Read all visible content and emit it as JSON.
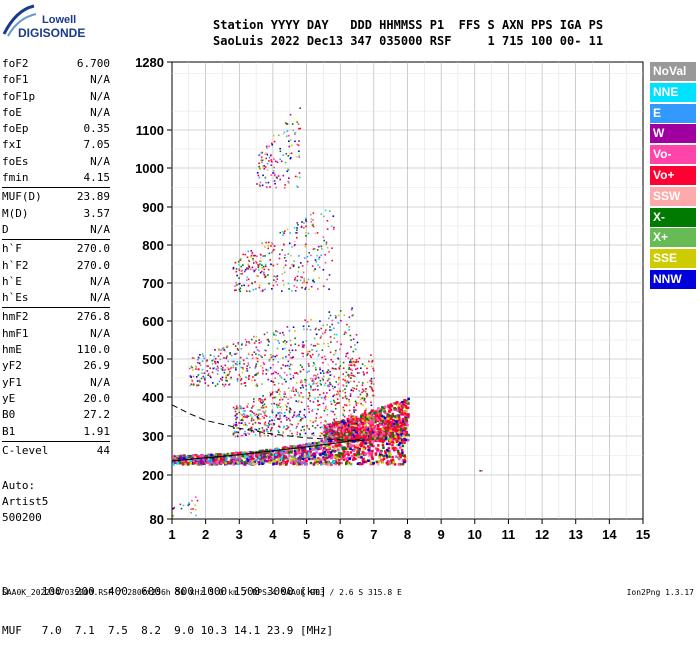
{
  "logo": {
    "line1": "Lowell",
    "line2": "DIGISONDE"
  },
  "header": {
    "line1": "Station YYYY DAY   DDD HHMMSS P1  FFS S AXN PPS IGA PS",
    "line2": "SaoLuis 2022 Dec13 347 035000 RSF     1 715 100 00- 11"
  },
  "params": {
    "group1": [
      {
        "name": "foF2",
        "value": "6.700"
      },
      {
        "name": "foF1",
        "value": "N/A"
      },
      {
        "name": "foF1p",
        "value": "N/A"
      },
      {
        "name": "foE",
        "value": "N/A"
      },
      {
        "name": "foEp",
        "value": "0.35"
      },
      {
        "name": "fxI",
        "value": "7.05"
      },
      {
        "name": "foEs",
        "value": "N/A"
      },
      {
        "name": "fmin",
        "value": "4.15"
      }
    ],
    "group2": [
      {
        "name": "MUF(D)",
        "value": "23.89"
      },
      {
        "name": "M(D)",
        "value": "3.57"
      },
      {
        "name": "D",
        "value": "N/A"
      }
    ],
    "group3": [
      {
        "name": "h`F",
        "value": "270.0"
      },
      {
        "name": "h`F2",
        "value": "270.0"
      },
      {
        "name": "h`E",
        "value": "N/A"
      },
      {
        "name": "h`Es",
        "value": "N/A"
      }
    ],
    "group4": [
      {
        "name": "hmF2",
        "value": "276.8"
      },
      {
        "name": "hmF1",
        "value": "N/A"
      },
      {
        "name": "hmE",
        "value": "110.0"
      },
      {
        "name": "yF2",
        "value": "26.9"
      },
      {
        "name": "yF1",
        "value": "N/A"
      },
      {
        "name": "yE",
        "value": "20.0"
      },
      {
        "name": "B0",
        "value": "27.2"
      },
      {
        "name": "B1",
        "value": "1.91"
      }
    ],
    "group5": [
      {
        "name": "C-level",
        "value": "44"
      }
    ]
  },
  "auto": {
    "line1": "Auto:",
    "line2": "Artist5",
    "line3": "500200"
  },
  "legend": [
    {
      "label": "NoVal",
      "color": "#999999"
    },
    {
      "label": "NNE",
      "color": "#00e0ff"
    },
    {
      "label": "E",
      "color": "#3399ff"
    },
    {
      "label": "W",
      "color": "#a000a0"
    },
    {
      "label": "Vo-",
      "color": "#ff44aa"
    },
    {
      "label": "Vo+",
      "color": "#ff0033"
    },
    {
      "label": "SSW",
      "color": "#ffaaaa"
    },
    {
      "label": "X-",
      "color": "#007a00"
    },
    {
      "label": "X+",
      "color": "#66bb55"
    },
    {
      "label": "SSE",
      "color": "#cccc00"
    },
    {
      "label": "NNW",
      "color": "#0000dd"
    }
  ],
  "bottom_table": {
    "row1": "D     100  200  400  600  800 1000 1500 3000 [km]",
    "row2": "MUF   7.0  7.1  7.5  8.2  9.0 10.3 14.1 23.9 [MHz]"
  },
  "footer": "SAA0K_2022347035000.RSF / 280fx256h 50 kHz 5.0 km / DPS-4 SAA0K 903 / 2.6 S 315.8 E",
  "version": "Ion2Png 1.3.17",
  "chart_data": {
    "type": "scatter",
    "title": "",
    "xlabel": "",
    "ylabel": "",
    "xlim": [
      1,
      15
    ],
    "ylim": [
      80,
      1280
    ],
    "y_scale": "ionogram-nonlinear",
    "grid": true,
    "x_ticks": [
      1,
      2,
      3,
      4,
      5,
      6,
      7,
      8,
      9,
      10,
      11,
      12,
      13,
      14,
      15
    ],
    "y_ticks": [
      80,
      200,
      300,
      400,
      500,
      600,
      700,
      800,
      900,
      1000,
      1100,
      1280
    ],
    "trace_fit": [
      [
        1.0,
        236
      ],
      [
        2.0,
        244
      ],
      [
        3.0,
        252
      ],
      [
        4.0,
        262
      ],
      [
        5.0,
        272
      ],
      [
        6.0,
        283
      ],
      [
        6.6,
        292
      ]
    ],
    "trace_lower_branch": [
      [
        1.0,
        380
      ],
      [
        1.5,
        358
      ],
      [
        2.0,
        340
      ],
      [
        3.0,
        320
      ],
      [
        4.0,
        305
      ],
      [
        5.0,
        295
      ],
      [
        6.0,
        290
      ],
      [
        6.7,
        288
      ]
    ],
    "clusters": [
      {
        "name": "F-trace",
        "xmin": 1.0,
        "xmax": 7.9,
        "ymin": 230,
        "ymax": 345,
        "density": 1400
      },
      {
        "name": "F-trace-dense",
        "xmin": 5.5,
        "xmax": 8.0,
        "ymin": 290,
        "ymax": 400,
        "density": 900
      },
      {
        "name": "F-spread",
        "xmin": 2.8,
        "xmax": 7.0,
        "ymin": 300,
        "ymax": 520,
        "density": 700
      },
      {
        "name": "2F",
        "xmin": 1.5,
        "xmax": 6.5,
        "ymin": 430,
        "ymax": 650,
        "density": 550
      },
      {
        "name": "3F",
        "xmin": 2.8,
        "xmax": 5.8,
        "ymin": 680,
        "ymax": 920,
        "density": 300
      },
      {
        "name": "4F",
        "xmin": 3.5,
        "xmax": 4.8,
        "ymin": 950,
        "ymax": 1180,
        "density": 130
      },
      {
        "name": "low",
        "xmin": 1.0,
        "xmax": 1.8,
        "ymin": 90,
        "ymax": 160,
        "density": 20
      },
      {
        "name": "isolated",
        "xmin": 10.1,
        "xmax": 10.2,
        "ymin": 210,
        "ymax": 220,
        "density": 2
      }
    ]
  }
}
